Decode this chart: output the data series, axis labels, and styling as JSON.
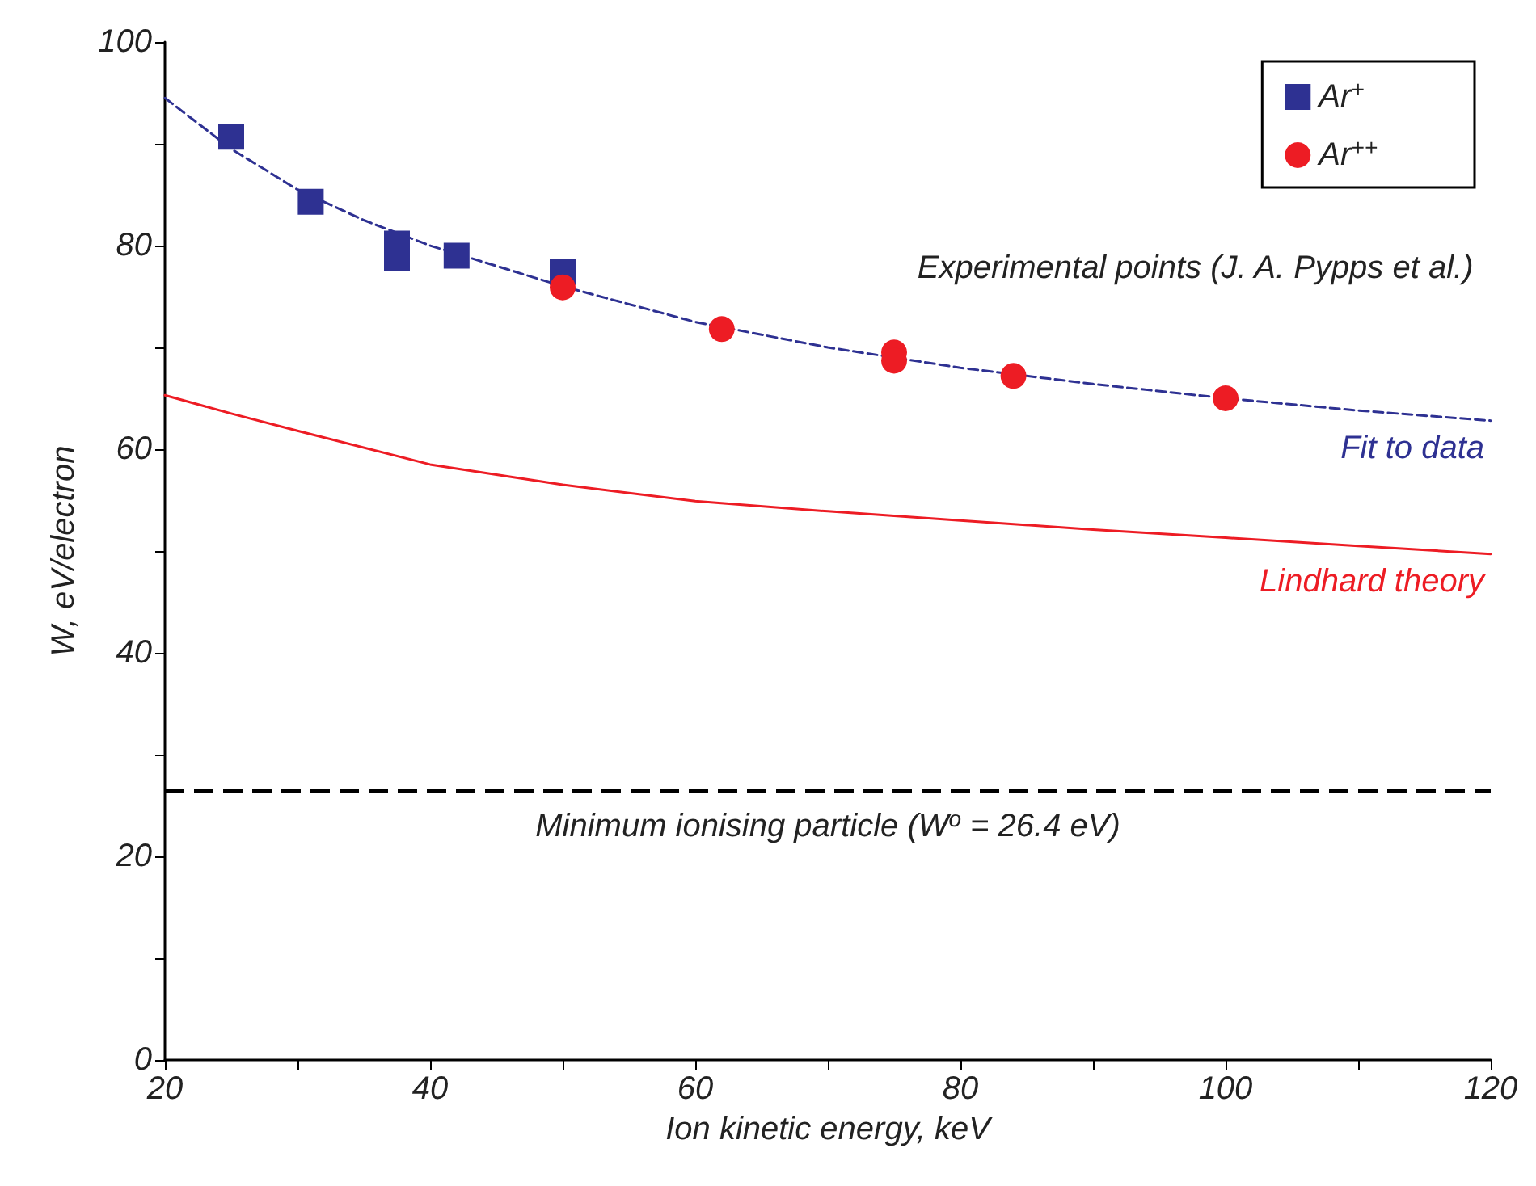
{
  "chart_data": {
    "type": "scatter",
    "xlabel": "Ion kinetic energy, keV",
    "ylabel": "W, eV/electron",
    "xlim": [
      20,
      120
    ],
    "xticks": [
      20,
      {
        "value": 30,
        "label": null
      },
      40,
      {
        "value": 50,
        "label": null
      },
      60,
      {
        "value": 70,
        "label": null
      },
      80,
      {
        "value": 90,
        "label": null
      },
      100,
      {
        "value": 110,
        "label": null
      },
      120
    ],
    "ylim": [
      0,
      100
    ],
    "yticks": [
      0,
      {
        "value": 10,
        "label": null
      },
      20,
      {
        "value": 30,
        "label": null
      },
      40,
      {
        "value": 50,
        "label": null
      },
      60,
      {
        "value": 70,
        "label": null
      },
      80,
      {
        "value": 90,
        "label": null
      },
      100
    ],
    "grid": false,
    "legend": "top right",
    "annotations": [
      "Experimental points (J. A. Pypps et al.)"
    ],
    "ref_lines": [
      {
        "axis": "y",
        "value": 26.4,
        "label": "Minimum ionising particle (W$^{o}$ = 26.4 eV)",
        "color": "#000000",
        "line_style": "dashed"
      }
    ],
    "series": [
      {
        "name": "Fit to data",
        "type": "line",
        "marker": "none",
        "line_style": "dashed",
        "color": "#2e3192",
        "x": [
          20,
          25,
          30,
          35,
          40,
          50,
          60,
          70,
          80,
          90,
          100,
          110,
          120
        ],
        "values": [
          94.5,
          89.5,
          85.5,
          82.5,
          80,
          76,
          72.5,
          70,
          68,
          66.4,
          65,
          63.8,
          62.8
        ]
      },
      {
        "name": "Lindhard theory",
        "type": "line",
        "marker": "none",
        "line_style": "solid",
        "color": "#ed1c24",
        "x": [
          20,
          25,
          30,
          40,
          50,
          60,
          70,
          80,
          90,
          100,
          110,
          120
        ],
        "values": [
          65.3,
          63.5,
          61.8,
          58.5,
          56.5,
          54.9,
          53.9,
          53,
          52.1,
          51.3,
          50.5,
          49.7
        ]
      },
      {
        "name": "Ar$^{+}$",
        "marker": "square",
        "color": "#2e3192",
        "x": [
          25,
          31,
          37.5,
          37.5,
          42,
          50
        ],
        "values": [
          90.7,
          84.3,
          80.2,
          78.8,
          79,
          77.4
        ]
      },
      {
        "name": "Ar$^{++}$",
        "marker": "circle",
        "color": "#ed1c24",
        "x": [
          50,
          62,
          75,
          75,
          84,
          100
        ],
        "values": [
          75.9,
          71.8,
          69.5,
          68.7,
          67.2,
          65
        ]
      }
    ]
  }
}
